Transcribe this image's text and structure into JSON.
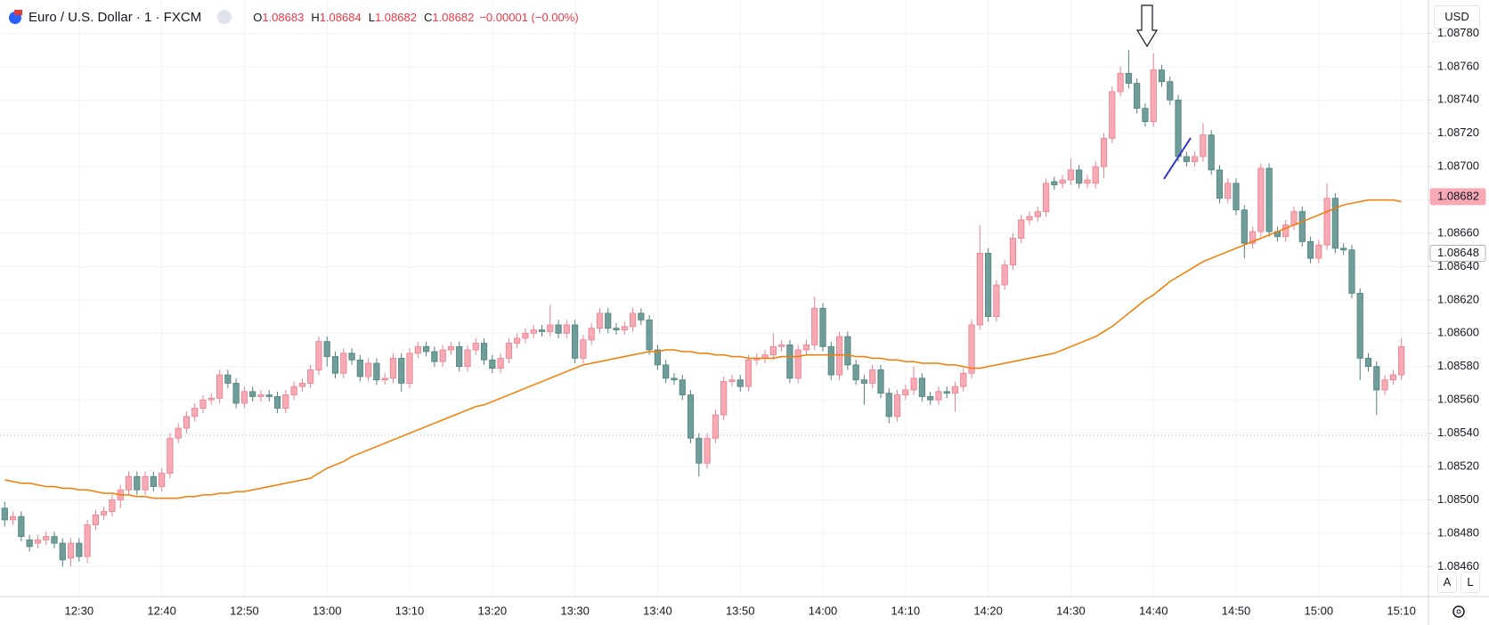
{
  "header": {
    "title": "Euro / U.S. Dollar · 1 · FXCM",
    "ohlc": [
      {
        "key": "O",
        "value": "1.08683"
      },
      {
        "key": "H",
        "value": "1.08684"
      },
      {
        "key": "L",
        "value": "1.08682"
      },
      {
        "key": "C",
        "value": "1.08682"
      }
    ],
    "change": "−0.00001 (−0.00%)",
    "currency": "USD",
    "buttons": [
      "A",
      "L"
    ]
  },
  "chart_data": {
    "type": "candlestick",
    "categories": [
      null,
      null,
      null,
      null,
      null,
      null,
      null,
      null,
      null,
      "12:30",
      null,
      null,
      null,
      null,
      null,
      null,
      null,
      null,
      null,
      "12:40",
      null,
      null,
      null,
      null,
      null,
      null,
      null,
      null,
      null,
      "12:50",
      null,
      null,
      null,
      null,
      null,
      null,
      null,
      null,
      null,
      "13:00",
      null,
      null,
      null,
      null,
      null,
      null,
      null,
      null,
      null,
      "13:10",
      null,
      null,
      null,
      null,
      null,
      null,
      null,
      null,
      null,
      "13:20",
      null,
      null,
      null,
      null,
      null,
      null,
      null,
      null,
      null,
      "13:30",
      null,
      null,
      null,
      null,
      null,
      null,
      null,
      null,
      null,
      "13:40",
      null,
      null,
      null,
      null,
      null,
      null,
      null,
      null,
      null,
      "13:50",
      null,
      null,
      null,
      null,
      null,
      null,
      null,
      null,
      null,
      "14:00",
      null,
      null,
      null,
      null,
      null,
      null,
      null,
      null,
      null,
      "14:10",
      null,
      null,
      null,
      null,
      null,
      null,
      null,
      null,
      null,
      "14:20",
      null,
      null,
      null,
      null,
      null,
      null,
      null,
      null,
      null,
      "14:30",
      null,
      null,
      null,
      null,
      null,
      null,
      null,
      null,
      null,
      "14:40",
      null,
      null,
      null,
      null,
      null,
      null,
      null,
      null,
      null,
      "14:50",
      null,
      null,
      null,
      null,
      null,
      null,
      null,
      null,
      null,
      "15:00",
      null,
      null,
      null,
      null,
      null,
      null,
      null,
      null,
      null,
      "15:10"
    ],
    "open": [
      1.08495,
      1.08488,
      1.0849,
      1.08476,
      1.08474,
      1.08476,
      1.08478,
      1.08474,
      1.08465,
      1.08474,
      1.08466,
      1.08485,
      1.08491,
      1.08493,
      1.085,
      1.08506,
      1.08514,
      1.08506,
      1.08514,
      1.08508,
      1.08516,
      1.08537,
      1.08543,
      1.0855,
      1.08555,
      1.0856,
      1.08561,
      1.08575,
      1.0857,
      1.08558,
      1.08565,
      1.08562,
      1.08563,
      1.08562,
      1.08555,
      1.08563,
      1.08568,
      1.0857,
      1.08578,
      1.08595,
      1.08586,
      1.08576,
      1.08588,
      1.08584,
      1.08574,
      1.08582,
      1.08572,
      1.08573,
      1.08585,
      1.0857,
      1.08588,
      1.08592,
      1.08589,
      1.08583,
      1.0859,
      1.08592,
      1.0858,
      1.0859,
      1.08594,
      1.08584,
      1.08579,
      1.08585,
      1.08594,
      1.08597,
      1.086,
      1.08602,
      1.08601,
      1.08605,
      1.086,
      1.08605,
      1.08585,
      1.08596,
      1.08603,
      1.08612,
      1.08603,
      1.08602,
      1.08604,
      1.08612,
      1.08608,
      1.0859,
      1.08581,
      1.08573,
      1.08572,
      1.08563,
      1.08537,
      1.08522,
      1.08537,
      1.08551,
      1.08571,
      1.08572,
      1.08568,
      1.08584,
      1.08585,
      1.08587,
      1.08592,
      1.08593,
      1.08573,
      1.0859,
      1.08593,
      1.08615,
      1.08592,
      1.08575,
      1.08598,
      1.08581,
      1.08572,
      1.0857,
      1.08578,
      1.08564,
      1.0855,
      1.08563,
      1.08566,
      1.08573,
      1.08562,
      1.0856,
      1.08565,
      1.08564,
      1.08568,
      1.08576,
      1.08605,
      1.08648,
      1.0861,
      1.08629,
      1.08641,
      1.08657,
      1.08668,
      1.0867,
      1.08673,
      1.08691,
      1.0869,
      1.08692,
      1.08698,
      1.0869,
      1.0869,
      1.087,
      1.08717,
      1.08745,
      1.08756,
      1.0875,
      1.08735,
      1.08727,
      1.08758,
      1.08751,
      1.0874,
      1.08706,
      1.08703,
      1.08706,
      1.08719,
      1.08698,
      1.08681,
      1.0869,
      1.08674,
      1.08654,
      1.08661,
      1.08699,
      1.08661,
      1.08658,
      1.08665,
      1.08673,
      1.08655,
      1.08645,
      1.08653,
      1.08681,
      1.08651,
      1.0865,
      1.08624,
      1.08585,
      1.0858,
      1.08566,
      1.08572,
      1.08575
    ],
    "high": [
      1.08499,
      1.08493,
      1.08493,
      1.08479,
      1.08479,
      1.08481,
      1.08481,
      1.08477,
      1.08477,
      1.08477,
      1.08488,
      1.08494,
      1.08496,
      1.08503,
      1.08509,
      1.08517,
      1.08517,
      1.08517,
      1.08517,
      1.08519,
      1.0854,
      1.08546,
      1.08553,
      1.08558,
      1.08563,
      1.08564,
      1.08578,
      1.08578,
      1.08573,
      1.08568,
      1.08568,
      1.08566,
      1.08566,
      1.08565,
      1.08566,
      1.08571,
      1.08573,
      1.08581,
      1.08598,
      1.08598,
      1.08589,
      1.08591,
      1.08591,
      1.08587,
      1.08585,
      1.08585,
      1.08576,
      1.08588,
      1.08588,
      1.08591,
      1.08595,
      1.08595,
      1.08592,
      1.08593,
      1.08595,
      1.08595,
      1.08593,
      1.08597,
      1.08597,
      1.08587,
      1.08588,
      1.08597,
      1.086,
      1.08603,
      1.08605,
      1.08605,
      1.08617,
      1.08608,
      1.08608,
      1.08608,
      1.08599,
      1.08606,
      1.08615,
      1.08615,
      1.08606,
      1.08607,
      1.08615,
      1.08615,
      1.08611,
      1.08593,
      1.08584,
      1.08576,
      1.08575,
      1.08566,
      1.0854,
      1.0854,
      1.08554,
      1.08574,
      1.08575,
      1.08575,
      1.08587,
      1.08588,
      1.0859,
      1.086,
      1.08596,
      1.08596,
      1.08593,
      1.08596,
      1.08622,
      1.08618,
      1.08595,
      1.08601,
      1.08601,
      1.08584,
      1.08575,
      1.08581,
      1.08581,
      1.08567,
      1.08566,
      1.08569,
      1.0858,
      1.08576,
      1.08565,
      1.08568,
      1.08568,
      1.08571,
      1.08579,
      1.08608,
      1.08665,
      1.08651,
      1.08632,
      1.08644,
      1.0866,
      1.08671,
      1.08673,
      1.08676,
      1.08693,
      1.08694,
      1.08695,
      1.08705,
      1.08701,
      1.08695,
      1.08703,
      1.0872,
      1.08748,
      1.0876,
      1.0877,
      1.08753,
      1.08738,
      1.08768,
      1.08761,
      1.08754,
      1.08743,
      1.08709,
      1.08709,
      1.08726,
      1.08722,
      1.08701,
      1.08693,
      1.08693,
      1.08677,
      1.08664,
      1.08702,
      1.08702,
      1.08664,
      1.08668,
      1.08676,
      1.08676,
      1.08658,
      1.08656,
      1.0869,
      1.08684,
      1.08654,
      1.08653,
      1.08627,
      1.08588,
      1.08583,
      1.08575,
      1.08578,
      1.08597
    ],
    "low": [
      1.08484,
      1.08485,
      1.08475,
      1.08469,
      1.08471,
      1.08473,
      1.08471,
      1.0846,
      1.0846,
      1.08463,
      1.08462,
      1.08482,
      1.08488,
      1.0849,
      1.08495,
      1.08503,
      1.08503,
      1.08503,
      1.08505,
      1.08505,
      1.08513,
      1.08534,
      1.0854,
      1.08547,
      1.08552,
      1.08557,
      1.08558,
      1.08567,
      1.08555,
      1.08555,
      1.08559,
      1.08559,
      1.08559,
      1.08552,
      1.08552,
      1.0856,
      1.08565,
      1.08567,
      1.08575,
      1.0858,
      1.08573,
      1.08573,
      1.08581,
      1.08571,
      1.08571,
      1.08569,
      1.08569,
      1.0857,
      1.08565,
      1.08567,
      1.08585,
      1.08586,
      1.0858,
      1.0858,
      1.08587,
      1.08577,
      1.08577,
      1.08587,
      1.08581,
      1.08576,
      1.08576,
      1.08582,
      1.08591,
      1.08594,
      1.08597,
      1.08598,
      1.08598,
      1.08597,
      1.08597,
      1.08582,
      1.08582,
      1.08593,
      1.086,
      1.086,
      1.08599,
      1.08599,
      1.08601,
      1.08605,
      1.08587,
      1.08578,
      1.0857,
      1.08569,
      1.0856,
      1.08534,
      1.08514,
      1.08519,
      1.08534,
      1.08548,
      1.08568,
      1.08565,
      1.08565,
      1.08581,
      1.08582,
      1.08584,
      1.08589,
      1.0857,
      1.0857,
      1.08587,
      1.0859,
      1.08589,
      1.08572,
      1.08572,
      1.08578,
      1.08569,
      1.08557,
      1.08567,
      1.08561,
      1.08546,
      1.08547,
      1.0856,
      1.08563,
      1.08559,
      1.08557,
      1.08557,
      1.08561,
      1.08553,
      1.08565,
      1.08573,
      1.08602,
      1.08607,
      1.08607,
      1.08626,
      1.08638,
      1.08654,
      1.08665,
      1.08667,
      1.0867,
      1.08686,
      1.08687,
      1.08689,
      1.08687,
      1.08687,
      1.08687,
      1.08693,
      1.08714,
      1.08742,
      1.08747,
      1.08732,
      1.08724,
      1.08724,
      1.08748,
      1.08737,
      1.08703,
      1.087,
      1.087,
      1.08703,
      1.08695,
      1.08678,
      1.08678,
      1.08671,
      1.08645,
      1.08651,
      1.08658,
      1.08658,
      1.08655,
      1.08655,
      1.08662,
      1.08652,
      1.08642,
      1.08642,
      1.0865,
      1.08648,
      1.08647,
      1.08621,
      1.08572,
      1.08577,
      1.08551,
      1.08563,
      1.08569,
      1.08572
    ],
    "close": [
      1.08488,
      1.0849,
      1.08478,
      1.08472,
      1.08476,
      1.08478,
      1.08474,
      1.08464,
      1.08474,
      1.08466,
      1.08485,
      1.08491,
      1.08493,
      1.085,
      1.08506,
      1.08514,
      1.08506,
      1.08514,
      1.08508,
      1.08516,
      1.08537,
      1.08543,
      1.0855,
      1.08555,
      1.0856,
      1.08561,
      1.08575,
      1.0857,
      1.08558,
      1.08565,
      1.08562,
      1.08563,
      1.08562,
      1.08555,
      1.08563,
      1.08568,
      1.0857,
      1.08578,
      1.08595,
      1.08586,
      1.08576,
      1.08588,
      1.08584,
      1.08574,
      1.08582,
      1.08572,
      1.08573,
      1.08585,
      1.0857,
      1.08588,
      1.08592,
      1.08589,
      1.08583,
      1.0859,
      1.08592,
      1.0858,
      1.0859,
      1.08594,
      1.08584,
      1.08579,
      1.08585,
      1.08594,
      1.08597,
      1.086,
      1.08602,
      1.08601,
      1.08605,
      1.086,
      1.08605,
      1.08585,
      1.08596,
      1.08603,
      1.08612,
      1.08603,
      1.08602,
      1.08604,
      1.08612,
      1.08608,
      1.0859,
      1.08581,
      1.08573,
      1.08572,
      1.08563,
      1.08537,
      1.08522,
      1.08537,
      1.08551,
      1.08571,
      1.08572,
      1.08568,
      1.08584,
      1.08585,
      1.08587,
      1.08592,
      1.08593,
      1.08573,
      1.0859,
      1.08593,
      1.08615,
      1.08592,
      1.08575,
      1.08598,
      1.08581,
      1.08572,
      1.0857,
      1.08578,
      1.08564,
      1.0855,
      1.08563,
      1.08566,
      1.08573,
      1.08562,
      1.0856,
      1.08565,
      1.08564,
      1.08568,
      1.08576,
      1.08605,
      1.08648,
      1.0861,
      1.08629,
      1.08641,
      1.08657,
      1.08668,
      1.0867,
      1.08673,
      1.0869,
      1.08689,
      1.08692,
      1.08698,
      1.0869,
      1.08692,
      1.087,
      1.08717,
      1.08745,
      1.08756,
      1.0875,
      1.08735,
      1.08727,
      1.08758,
      1.08751,
      1.0874,
      1.08706,
      1.08703,
      1.08706,
      1.08719,
      1.08698,
      1.08681,
      1.0869,
      1.08674,
      1.08654,
      1.08661,
      1.08699,
      1.08661,
      1.08658,
      1.08665,
      1.08673,
      1.08655,
      1.08645,
      1.08653,
      1.08681,
      1.08651,
      1.0865,
      1.08624,
      1.08585,
      1.0858,
      1.08566,
      1.08572,
      1.08575,
      1.08592
    ],
    "ma": {
      "color": "#f57c00",
      "values": [
        1.08512,
        1.08511,
        1.0851,
        1.0851,
        1.08509,
        1.08508,
        1.08508,
        1.08507,
        1.08507,
        1.08506,
        1.08506,
        1.08505,
        1.08504,
        1.08504,
        1.08503,
        1.08503,
        1.08502,
        1.08502,
        1.08501,
        1.08501,
        1.08501,
        1.08501,
        1.08502,
        1.08502,
        1.08503,
        1.08503,
        1.08504,
        1.08504,
        1.08505,
        1.08505,
        1.08506,
        1.08507,
        1.08508,
        1.08509,
        1.0851,
        1.08511,
        1.08512,
        1.08513,
        1.08516,
        1.08519,
        1.08521,
        1.08523,
        1.08526,
        1.08528,
        1.0853,
        1.08532,
        1.08534,
        1.08536,
        1.08538,
        1.0854,
        1.08542,
        1.08544,
        1.08546,
        1.08548,
        1.0855,
        1.08552,
        1.08554,
        1.08556,
        1.08557,
        1.08559,
        1.08561,
        1.08563,
        1.08565,
        1.08567,
        1.08569,
        1.08571,
        1.08573,
        1.08575,
        1.08577,
        1.08579,
        1.08581,
        1.08582,
        1.08583,
        1.08584,
        1.08585,
        1.08586,
        1.08587,
        1.08588,
        1.08589,
        1.08589,
        1.0859,
        1.0859,
        1.08589,
        1.08589,
        1.08588,
        1.08588,
        1.08587,
        1.08587,
        1.08586,
        1.08586,
        1.08585,
        1.08585,
        1.08585,
        1.08585,
        1.08586,
        1.08586,
        1.08586,
        1.08587,
        1.08587,
        1.08587,
        1.08587,
        1.08587,
        1.08587,
        1.08586,
        1.08586,
        1.08585,
        1.08585,
        1.08584,
        1.08584,
        1.08583,
        1.08583,
        1.08582,
        1.08582,
        1.08582,
        1.08581,
        1.08581,
        1.0858,
        1.08579,
        1.08579,
        1.0858,
        1.08581,
        1.08582,
        1.08583,
        1.08584,
        1.08585,
        1.08586,
        1.08587,
        1.08588,
        1.0859,
        1.08592,
        1.08594,
        1.08596,
        1.08598,
        1.08601,
        1.08604,
        1.08608,
        1.08612,
        1.08616,
        1.0862,
        1.08623,
        1.08627,
        1.08631,
        1.08634,
        1.08637,
        1.0864,
        1.08643,
        1.08645,
        1.08647,
        1.08649,
        1.08651,
        1.08653,
        1.08655,
        1.08657,
        1.08659,
        1.08661,
        1.08663,
        1.08665,
        1.08667,
        1.08669,
        1.08671,
        1.08673,
        1.08675,
        1.08677,
        1.08678,
        1.08679,
        1.0868,
        1.0868,
        1.0868,
        1.0868,
        1.08679
      ]
    },
    "up_color": "#f7a9b4",
    "up_border": "#e8808f",
    "down_color": "#6f9e9a",
    "down_border": "#527f7b",
    "ylim": [
      1.08442,
      1.088
    ],
    "yticks": [
      {
        "value": 1.0846,
        "label": "1.08460"
      },
      {
        "value": 1.0848,
        "label": "1.08480"
      },
      {
        "value": 1.085,
        "label": "1.08500"
      },
      {
        "value": 1.0852,
        "label": "1.08520"
      },
      {
        "value": 1.0854,
        "label": "1.08540"
      },
      {
        "value": 1.0856,
        "label": "1.08560"
      },
      {
        "value": 1.0858,
        "label": "1.08580"
      },
      {
        "value": 1.086,
        "label": "1.08600"
      },
      {
        "value": 1.0862,
        "label": "1.08620"
      },
      {
        "value": 1.0864,
        "label": "1.08640"
      },
      {
        "value": 1.0866,
        "label": "1.08660"
      },
      {
        "value": 1.0868,
        "label": "1.08680"
      },
      {
        "value": 1.087,
        "label": "1.08700"
      },
      {
        "value": 1.0872,
        "label": "1.08720"
      },
      {
        "value": 1.0874,
        "label": "1.08740"
      },
      {
        "value": 1.0876,
        "label": "1.08760"
      },
      {
        "value": 1.0878,
        "label": "1.08780"
      }
    ],
    "grid": true,
    "price_labels": [
      {
        "value": 1.08682,
        "fill": "#f7a9b4",
        "border": "#f7a9b4"
      },
      {
        "value": 1.08648,
        "fill": "#ffffff",
        "border": "#b2b5be"
      }
    ]
  }
}
